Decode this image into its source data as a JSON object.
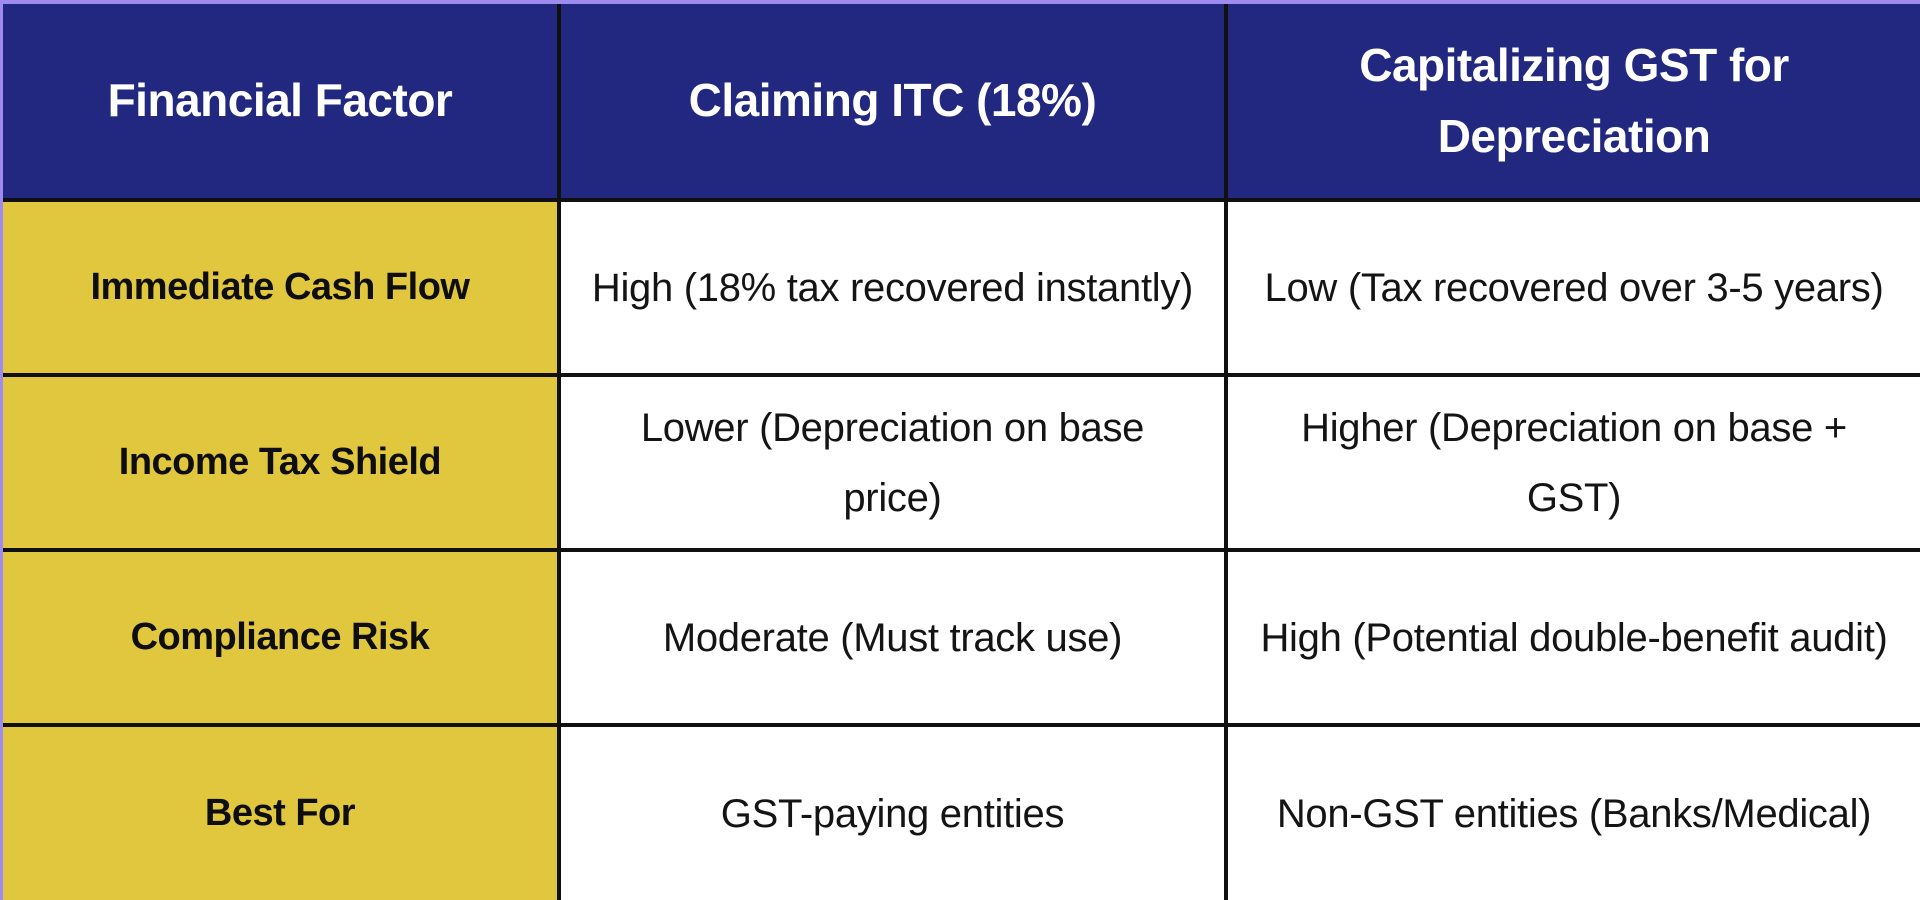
{
  "table": {
    "title_semantics": "GST treatment comparison table",
    "colors": {
      "header_bg": "#22287f",
      "header_text": "#ffffff",
      "factor_col_bg": "#e1c73e",
      "body_bg": "#ffffff",
      "grid_border": "#101010",
      "page_frame": "#9e8bf0"
    },
    "columns": [
      "Financial Factor",
      "Claiming ITC (18%)",
      "Capitalizing GST for Depreciation"
    ],
    "rows": [
      {
        "factor": "Immediate Cash Flow",
        "itc": "High (18% tax recovered instantly)",
        "capitalizing": "Low (Tax recovered over 3-5 years)"
      },
      {
        "factor": "Income Tax Shield",
        "itc": "Lower (Depreciation on base price)",
        "capitalizing": "Higher (Depreciation on base + GST)"
      },
      {
        "factor": "Compliance Risk",
        "itc": "Moderate (Must track use)",
        "capitalizing": "High (Potential double-benefit audit)"
      },
      {
        "factor": "Best For",
        "itc": "GST-paying entities",
        "capitalizing": "Non-GST entities (Banks/Medical)"
      }
    ]
  }
}
